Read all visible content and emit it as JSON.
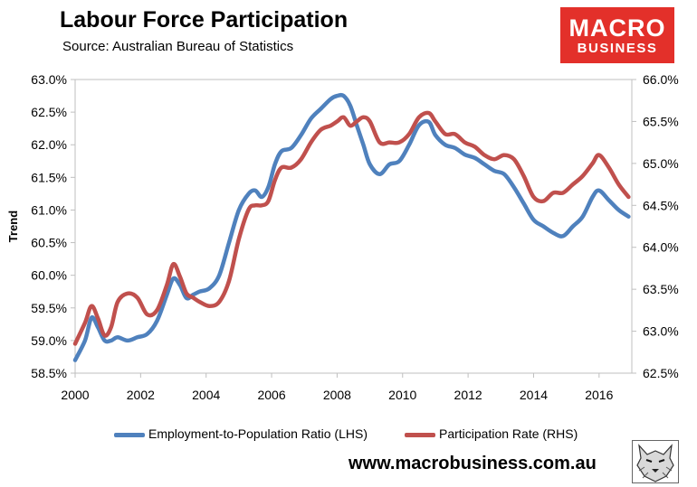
{
  "header": {
    "title": "Labour Force Participation",
    "source": "Source: Australian Bureau of Statistics"
  },
  "logo": {
    "line1": "MACRO",
    "line2": "BUSINESS",
    "color": "#e3302a"
  },
  "footer": {
    "url": "www.macrobusiness.com.au"
  },
  "chart_data": {
    "type": "line",
    "title": "Labour Force Participation",
    "subtitle": "Source: Australian Bureau of Statistics",
    "xlabel": "",
    "ylabel": "Trend",
    "xlim": [
      2000,
      2017
    ],
    "ylim": [
      58.5,
      63.0
    ],
    "y2lim": [
      62.5,
      66.0
    ],
    "grid": false,
    "legend_position": "bottom",
    "x_ticks": [
      2000,
      2002,
      2004,
      2006,
      2008,
      2010,
      2012,
      2014,
      2016
    ],
    "x_tick_labels": [
      "2000",
      "2002",
      "2004",
      "2006",
      "2008",
      "2010",
      "2012",
      "2014",
      "2016"
    ],
    "y_ticks": [
      58.5,
      59.0,
      59.5,
      60.0,
      60.5,
      61.0,
      61.5,
      62.0,
      62.5,
      63.0
    ],
    "y_tick_labels": [
      "58.5%",
      "59.0%",
      "59.5%",
      "60.0%",
      "60.5%",
      "61.0%",
      "61.5%",
      "62.0%",
      "62.5%",
      "63.0%"
    ],
    "y2_ticks": [
      62.5,
      63.0,
      63.5,
      64.0,
      64.5,
      65.0,
      65.5,
      66.0
    ],
    "y2_tick_labels": [
      "62.5%",
      "63.0%",
      "63.5%",
      "64.0%",
      "64.5%",
      "65.0%",
      "65.5%",
      "66.0%"
    ],
    "series": [
      {
        "name": "Employment-to-Population Ratio (LHS)",
        "axis": "left",
        "color": "#4f81bd",
        "x": [
          2000.0,
          2000.3,
          2000.5,
          2000.7,
          2000.9,
          2001.1,
          2001.3,
          2001.6,
          2001.9,
          2002.2,
          2002.5,
          2002.8,
          2003.0,
          2003.2,
          2003.4,
          2003.6,
          2003.8,
          2004.1,
          2004.4,
          2004.7,
          2005.0,
          2005.3,
          2005.5,
          2005.7,
          2005.9,
          2006.1,
          2006.3,
          2006.6,
          2006.9,
          2007.2,
          2007.5,
          2007.8,
          2008.0,
          2008.2,
          2008.4,
          2008.6,
          2008.8,
          2009.0,
          2009.3,
          2009.6,
          2009.9,
          2010.2,
          2010.5,
          2010.8,
          2011.0,
          2011.3,
          2011.6,
          2011.9,
          2012.2,
          2012.5,
          2012.8,
          2013.1,
          2013.4,
          2013.7,
          2014.0,
          2014.3,
          2014.6,
          2014.9,
          2015.2,
          2015.5,
          2015.8,
          2016.0,
          2016.3,
          2016.6,
          2016.9
        ],
        "values": [
          58.7,
          59.0,
          59.35,
          59.2,
          59.0,
          59.0,
          59.05,
          59.0,
          59.05,
          59.1,
          59.3,
          59.7,
          59.95,
          59.85,
          59.65,
          59.7,
          59.75,
          59.8,
          60.0,
          60.5,
          61.0,
          61.25,
          61.3,
          61.2,
          61.35,
          61.7,
          61.9,
          61.95,
          62.15,
          62.4,
          62.55,
          62.7,
          62.75,
          62.75,
          62.6,
          62.3,
          62.0,
          61.7,
          61.55,
          61.7,
          61.75,
          62.0,
          62.3,
          62.35,
          62.15,
          62.0,
          61.95,
          61.85,
          61.8,
          61.7,
          61.6,
          61.55,
          61.35,
          61.1,
          60.85,
          60.75,
          60.65,
          60.6,
          60.75,
          60.9,
          61.2,
          61.3,
          61.15,
          61.0,
          60.9
        ]
      },
      {
        "name": "Participation Rate (RHS)",
        "axis": "right",
        "color": "#c0504d",
        "x": [
          2000.0,
          2000.3,
          2000.5,
          2000.7,
          2000.9,
          2001.1,
          2001.3,
          2001.6,
          2001.9,
          2002.2,
          2002.5,
          2002.8,
          2003.0,
          2003.2,
          2003.4,
          2003.6,
          2003.8,
          2004.1,
          2004.4,
          2004.7,
          2005.0,
          2005.3,
          2005.5,
          2005.7,
          2005.9,
          2006.1,
          2006.3,
          2006.6,
          2006.9,
          2007.2,
          2007.5,
          2007.8,
          2008.0,
          2008.2,
          2008.4,
          2008.6,
          2008.8,
          2009.0,
          2009.3,
          2009.6,
          2009.9,
          2010.2,
          2010.5,
          2010.8,
          2011.0,
          2011.3,
          2011.6,
          2011.9,
          2012.2,
          2012.5,
          2012.8,
          2013.1,
          2013.4,
          2013.7,
          2014.0,
          2014.3,
          2014.6,
          2014.9,
          2015.2,
          2015.5,
          2015.8,
          2016.0,
          2016.3,
          2016.6,
          2016.9
        ],
        "values": [
          62.85,
          63.1,
          63.3,
          63.15,
          62.95,
          63.05,
          63.35,
          63.45,
          63.4,
          63.2,
          63.25,
          63.55,
          63.8,
          63.65,
          63.45,
          63.4,
          63.35,
          63.3,
          63.35,
          63.6,
          64.1,
          64.45,
          64.5,
          64.5,
          64.55,
          64.8,
          64.95,
          64.95,
          65.05,
          65.25,
          65.4,
          65.45,
          65.5,
          65.55,
          65.45,
          65.5,
          65.55,
          65.5,
          65.25,
          65.25,
          65.25,
          65.35,
          65.55,
          65.6,
          65.5,
          65.35,
          65.35,
          65.25,
          65.2,
          65.1,
          65.05,
          65.1,
          65.05,
          64.85,
          64.6,
          64.55,
          64.65,
          64.65,
          64.75,
          64.85,
          65.0,
          65.1,
          64.95,
          64.75,
          64.6
        ]
      }
    ]
  }
}
